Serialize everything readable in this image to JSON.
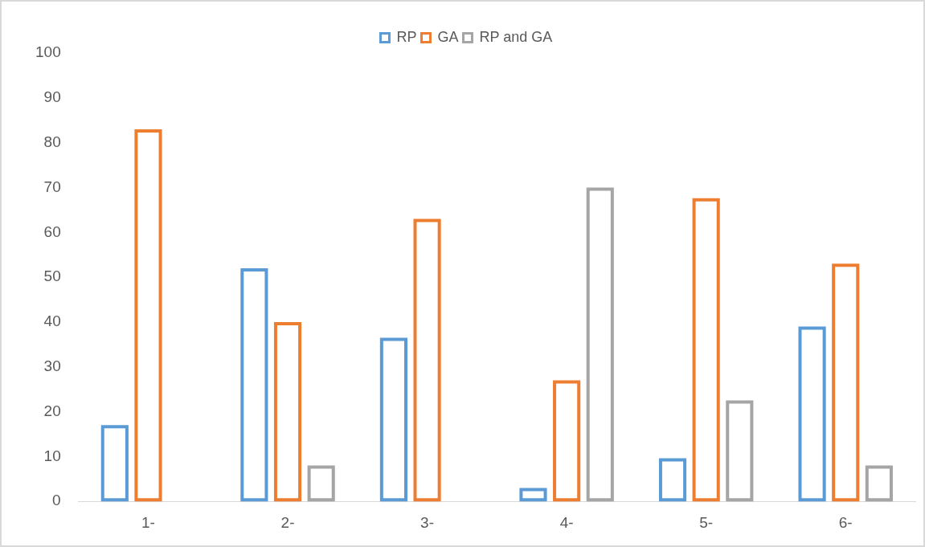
{
  "chart_data": {
    "type": "bar",
    "categories": [
      "1-",
      "2-",
      "3-",
      "4-",
      "5-",
      "6-"
    ],
    "series": [
      {
        "name": "RP",
        "color": "#5b9bd5",
        "values": [
          17,
          52,
          36.5,
          3,
          9.6,
          39
        ]
      },
      {
        "name": "GA",
        "color": "#ed7d31",
        "values": [
          83,
          40,
          63,
          27,
          67.6,
          53
        ]
      },
      {
        "name": "RP and GA",
        "color": "#a5a5a5",
        "values": [
          null,
          8,
          null,
          70,
          22.5,
          8
        ]
      }
    ],
    "ylim": [
      0,
      100
    ],
    "yticks": [
      0,
      10,
      20,
      30,
      40,
      50,
      60,
      70,
      80,
      90,
      100
    ],
    "grid": false,
    "legend": "top"
  }
}
